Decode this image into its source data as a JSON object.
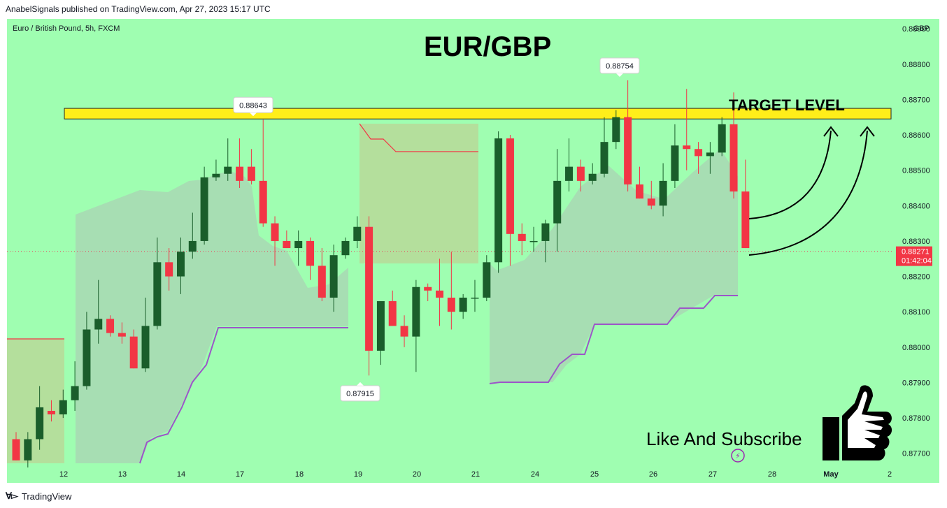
{
  "credit": "AnabelSignals published on TradingView.com, Apr 27, 2023 15:17 UTC",
  "symbol_info": "Euro / British Pound, 5h, FXCM",
  "currency": "GBP",
  "brand": "TradingView",
  "colors": {
    "background": "#9ffeb1",
    "bull": "#1a5e2b",
    "bear": "#f23645",
    "target_band": "#ffee1a",
    "trail_line": "#9c56c8",
    "cloud_fill": "#a8d8b4",
    "resist_zone": "#b6dc9a",
    "price_line": "#e84a5f"
  },
  "chart_data": {
    "type": "candlestick",
    "title": "EUR/GBP",
    "ylim": [
      0.8766,
      0.8892
    ],
    "y_ticks": [
      "0.88900",
      "0.88800",
      "0.88700",
      "0.88600",
      "0.88500",
      "0.88400",
      "0.88300",
      "0.88200",
      "0.88100",
      "0.88000",
      "0.87900",
      "0.87800",
      "0.87700"
    ],
    "x_ticks": [
      "12",
      "13",
      "14",
      "17",
      "18",
      "19",
      "20",
      "21",
      "24",
      "25",
      "26",
      "27",
      "28",
      "May",
      "2"
    ],
    "current_price": "0.88271",
    "countdown": "01:42:04",
    "target_label": "TARGET LEVEL",
    "target_band": [
      0.88645,
      0.88675
    ],
    "callouts": [
      {
        "label": "0.88643",
        "value": 0.88643
      },
      {
        "label": "0.88754",
        "value": 0.88754
      },
      {
        "label": "0.87915",
        "value": 0.87915
      }
    ],
    "candles": [
      {
        "o": 0.8774,
        "h": 0.8776,
        "l": 0.8768,
        "c": 0.8768
      },
      {
        "o": 0.8768,
        "h": 0.8776,
        "l": 0.8766,
        "c": 0.8774
      },
      {
        "o": 0.8774,
        "h": 0.8789,
        "l": 0.8771,
        "c": 0.8783
      },
      {
        "o": 0.8782,
        "h": 0.8785,
        "l": 0.8779,
        "c": 0.8781
      },
      {
        "o": 0.8781,
        "h": 0.8788,
        "l": 0.878,
        "c": 0.8785
      },
      {
        "o": 0.8785,
        "h": 0.8796,
        "l": 0.8782,
        "c": 0.8789
      },
      {
        "o": 0.8789,
        "h": 0.881,
        "l": 0.8788,
        "c": 0.8805
      },
      {
        "o": 0.8805,
        "h": 0.8819,
        "l": 0.8801,
        "c": 0.8808
      },
      {
        "o": 0.8808,
        "h": 0.8809,
        "l": 0.8803,
        "c": 0.8804
      },
      {
        "o": 0.8804,
        "h": 0.8807,
        "l": 0.8801,
        "c": 0.8803
      },
      {
        "o": 0.8803,
        "h": 0.8805,
        "l": 0.8794,
        "c": 0.8794
      },
      {
        "o": 0.8794,
        "h": 0.8814,
        "l": 0.8793,
        "c": 0.8806
      },
      {
        "o": 0.8806,
        "h": 0.8831,
        "l": 0.8805,
        "c": 0.8824
      },
      {
        "o": 0.8824,
        "h": 0.8828,
        "l": 0.8816,
        "c": 0.882
      },
      {
        "o": 0.882,
        "h": 0.8831,
        "l": 0.8815,
        "c": 0.8827
      },
      {
        "o": 0.8827,
        "h": 0.8838,
        "l": 0.8825,
        "c": 0.883
      },
      {
        "o": 0.883,
        "h": 0.8851,
        "l": 0.8829,
        "c": 0.8848
      },
      {
        "o": 0.8848,
        "h": 0.8853,
        "l": 0.8847,
        "c": 0.8849
      },
      {
        "o": 0.8849,
        "h": 0.8859,
        "l": 0.8847,
        "c": 0.8851
      },
      {
        "o": 0.8851,
        "h": 0.8859,
        "l": 0.8845,
        "c": 0.8847
      },
      {
        "o": 0.8851,
        "h": 0.8856,
        "l": 0.8846,
        "c": 0.8847
      },
      {
        "o": 0.8847,
        "h": 0.88643,
        "l": 0.8834,
        "c": 0.8835
      },
      {
        "o": 0.8835,
        "h": 0.8837,
        "l": 0.8823,
        "c": 0.883
      },
      {
        "o": 0.883,
        "h": 0.8833,
        "l": 0.8828,
        "c": 0.8828
      },
      {
        "o": 0.8828,
        "h": 0.8833,
        "l": 0.8823,
        "c": 0.883
      },
      {
        "o": 0.883,
        "h": 0.8831,
        "l": 0.8819,
        "c": 0.8823
      },
      {
        "o": 0.8823,
        "h": 0.8828,
        "l": 0.8813,
        "c": 0.8814
      },
      {
        "o": 0.8814,
        "h": 0.8829,
        "l": 0.881,
        "c": 0.8826
      },
      {
        "o": 0.8826,
        "h": 0.8831,
        "l": 0.8825,
        "c": 0.883
      },
      {
        "o": 0.883,
        "h": 0.8837,
        "l": 0.8828,
        "c": 0.8834
      },
      {
        "o": 0.8834,
        "h": 0.8837,
        "l": 0.8792,
        "c": 0.8799
      },
      {
        "o": 0.8799,
        "h": 0.8813,
        "l": 0.8795,
        "c": 0.8813
      },
      {
        "o": 0.8813,
        "h": 0.8816,
        "l": 0.8806,
        "c": 0.8806
      },
      {
        "o": 0.8806,
        "h": 0.8809,
        "l": 0.88,
        "c": 0.8803
      },
      {
        "o": 0.8803,
        "h": 0.8819,
        "l": 0.8793,
        "c": 0.8817
      },
      {
        "o": 0.8817,
        "h": 0.8818,
        "l": 0.8813,
        "c": 0.8816
      },
      {
        "o": 0.8816,
        "h": 0.8825,
        "l": 0.8806,
        "c": 0.8814
      },
      {
        "o": 0.8814,
        "h": 0.8827,
        "l": 0.8805,
        "c": 0.881
      },
      {
        "o": 0.881,
        "h": 0.8815,
        "l": 0.8808,
        "c": 0.8814
      },
      {
        "o": 0.8814,
        "h": 0.8819,
        "l": 0.881,
        "c": 0.8814
      },
      {
        "o": 0.8814,
        "h": 0.8826,
        "l": 0.8813,
        "c": 0.8824
      },
      {
        "o": 0.8824,
        "h": 0.8861,
        "l": 0.8821,
        "c": 0.8859
      },
      {
        "o": 0.8859,
        "h": 0.886,
        "l": 0.8823,
        "c": 0.8832
      },
      {
        "o": 0.8832,
        "h": 0.8835,
        "l": 0.8826,
        "c": 0.883
      },
      {
        "o": 0.883,
        "h": 0.8834,
        "l": 0.8827,
        "c": 0.883
      },
      {
        "o": 0.883,
        "h": 0.8836,
        "l": 0.8824,
        "c": 0.8835
      },
      {
        "o": 0.8835,
        "h": 0.8856,
        "l": 0.8827,
        "c": 0.8847
      },
      {
        "o": 0.8847,
        "h": 0.8859,
        "l": 0.8844,
        "c": 0.8851
      },
      {
        "o": 0.8851,
        "h": 0.8853,
        "l": 0.8844,
        "c": 0.8847
      },
      {
        "o": 0.8847,
        "h": 0.8852,
        "l": 0.8846,
        "c": 0.8849
      },
      {
        "o": 0.8849,
        "h": 0.8865,
        "l": 0.8848,
        "c": 0.8858
      },
      {
        "o": 0.8858,
        "h": 0.8867,
        "l": 0.8856,
        "c": 0.8865
      },
      {
        "o": 0.8865,
        "h": 0.88754,
        "l": 0.8844,
        "c": 0.8846
      },
      {
        "o": 0.8846,
        "h": 0.8851,
        "l": 0.8842,
        "c": 0.8842
      },
      {
        "o": 0.8842,
        "h": 0.8847,
        "l": 0.8839,
        "c": 0.884
      },
      {
        "o": 0.884,
        "h": 0.8852,
        "l": 0.8837,
        "c": 0.8847
      },
      {
        "o": 0.8847,
        "h": 0.8863,
        "l": 0.8845,
        "c": 0.8857
      },
      {
        "o": 0.8857,
        "h": 0.8873,
        "l": 0.885,
        "c": 0.8856
      },
      {
        "o": 0.8856,
        "h": 0.8858,
        "l": 0.8849,
        "c": 0.8854
      },
      {
        "o": 0.8854,
        "h": 0.8858,
        "l": 0.8849,
        "c": 0.8855
      },
      {
        "o": 0.8855,
        "h": 0.8865,
        "l": 0.8854,
        "c": 0.8863
      },
      {
        "o": 0.8863,
        "h": 0.8872,
        "l": 0.8842,
        "c": 0.8844
      },
      {
        "o": 0.8844,
        "h": 0.8853,
        "l": 0.8828,
        "c": 0.8828
      }
    ]
  },
  "cta": {
    "text": "Like And Subscribe",
    "icon": "thumbs-up-icon"
  }
}
